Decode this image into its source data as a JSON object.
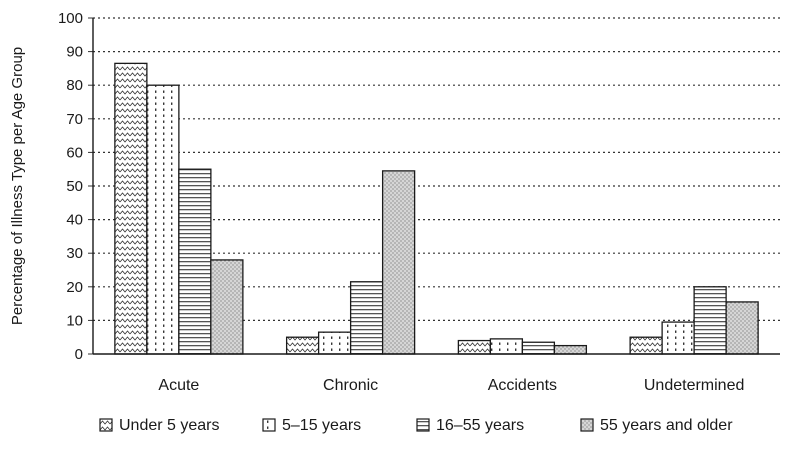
{
  "chart_data": {
    "type": "bar",
    "ylabel": "Percentage of Illness Type per Age Group",
    "xlabel": "",
    "ylim": [
      0,
      100
    ],
    "yticks": [
      0,
      10,
      20,
      30,
      40,
      50,
      60,
      70,
      80,
      90,
      100
    ],
    "grid": "horizontal-dotted",
    "legend_position": "bottom",
    "categories": [
      "Acute",
      "Chronic",
      "Accidents",
      "Undetermined"
    ],
    "series": [
      {
        "name": "Under 5 years",
        "pattern": "zigzag",
        "values": [
          86.5,
          5,
          4,
          5
        ]
      },
      {
        "name": "5–15 years",
        "pattern": "dots",
        "values": [
          80,
          6.5,
          4.5,
          9.5
        ]
      },
      {
        "name": "16–55 years",
        "pattern": "stripes",
        "values": [
          55,
          21.5,
          3.5,
          20
        ]
      },
      {
        "name": "55 years and older",
        "pattern": "stipple",
        "values": [
          28,
          54.5,
          2.5,
          15.5
        ]
      }
    ]
  }
}
